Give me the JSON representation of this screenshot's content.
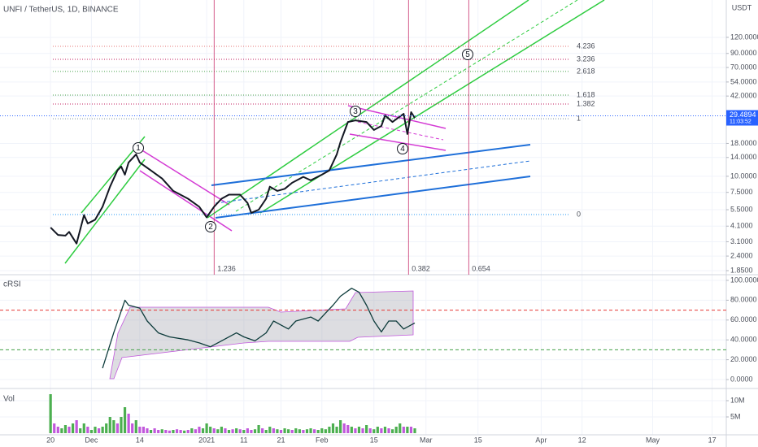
{
  "chart_data": [
    {
      "type": "line",
      "title": "UNFI / TetherUS, 1D, BINANCE",
      "currency": "USDT",
      "color": "#131722",
      "log": true,
      "grid": true,
      "xlim": [
        -13.6,
        181.8
      ],
      "xticks": [
        {
          "value": 0,
          "label": "20"
        },
        {
          "value": 11,
          "label": "Dec"
        },
        {
          "value": 24,
          "label": "14"
        },
        {
          "value": 42,
          "label": "2021"
        },
        {
          "value": 52,
          "label": "11"
        },
        {
          "value": 62,
          "label": "21"
        },
        {
          "value": 73,
          "label": "Feb"
        },
        {
          "value": 87,
          "label": "15"
        },
        {
          "value": 101,
          "label": "Mar"
        },
        {
          "value": 115,
          "label": "15"
        },
        {
          "value": 132,
          "label": "Apr"
        },
        {
          "value": 143,
          "label": "12"
        },
        {
          "value": 162,
          "label": "May"
        },
        {
          "value": 178,
          "label": "17"
        }
      ],
      "ylim": [
        1.72,
        234
      ],
      "yticks": [
        {
          "value": 120,
          "label": "120.0000"
        },
        {
          "value": 90,
          "label": "90.0000"
        },
        {
          "value": 70,
          "label": "70.0000"
        },
        {
          "value": 54,
          "label": "54.0000"
        },
        {
          "value": 42,
          "label": "42.0000"
        },
        {
          "value": 18,
          "label": "18.0000"
        },
        {
          "value": 14,
          "label": "14.0000"
        },
        {
          "value": 10,
          "label": "10.0000"
        },
        {
          "value": 7.5,
          "label": "7.5000"
        },
        {
          "value": 5.5,
          "label": "5.5000"
        },
        {
          "value": 4.1,
          "label": "4.1000"
        },
        {
          "value": 3.1,
          "label": "3.1000"
        },
        {
          "value": 2.4,
          "label": "2.4000"
        },
        {
          "value": 1.85,
          "label": "1.8500"
        }
      ],
      "x": [
        0,
        2,
        4,
        5,
        7,
        9,
        10,
        12,
        14,
        16,
        18,
        19,
        20,
        21,
        23,
        24,
        27,
        30,
        33,
        37,
        40,
        42,
        44,
        46,
        48,
        51,
        53,
        54,
        56,
        58,
        59,
        61,
        63,
        65,
        68,
        70,
        73,
        75,
        77,
        78,
        80,
        82,
        85,
        87,
        89,
        90,
        92,
        95,
        96,
        97,
        98
      ],
      "values": [
        4.0,
        3.5,
        3.46,
        3.7,
        3.0,
        5.0,
        4.3,
        4.6,
        5.8,
        8.3,
        11.1,
        11.9,
        10.3,
        12.8,
        14.8,
        12.8,
        11.1,
        9.6,
        7.7,
        6.7,
        5.8,
        4.8,
        5.8,
        6.7,
        7.2,
        7.2,
        6.2,
        5.2,
        5.5,
        6.7,
        8.3,
        7.7,
        8.0,
        8.9,
        9.9,
        9.3,
        10.3,
        11.1,
        14.8,
        18.4,
        26.4,
        27.2,
        26.4,
        22.9,
        24.6,
        29.7,
        26.4,
        30.6,
        21.3,
        31.5,
        28.4
      ],
      "last_price": 29.4894,
      "last_color": "#2962ff",
      "countdown": "11:03:52",
      "fib_levels": [
        {
          "value": 102.2,
          "label": "4.236",
          "color": "#e57373"
        },
        {
          "value": 81.0,
          "label": "3.236",
          "color": "#c2185b"
        },
        {
          "value": 65.2,
          "label": "2.618",
          "color": "#43a047"
        },
        {
          "value": 42.7,
          "label": "1.618",
          "color": "#43a047"
        },
        {
          "value": 36.4,
          "label": "1.382",
          "color": "#c2185b"
        },
        {
          "value": 28.0,
          "label": "1",
          "color": "#78909c"
        },
        {
          "value": 5.04,
          "label": "0",
          "color": "#2196f3"
        }
      ],
      "fib_time": [
        {
          "x": 44,
          "label": "1.236"
        },
        {
          "x": 96.3,
          "label": "0.382"
        },
        {
          "x": 112.5,
          "label": "0.654"
        }
      ],
      "waves": [
        "1",
        "2",
        "3",
        "4",
        "5"
      ]
    },
    {
      "type": "line",
      "title": "cRSI",
      "color": "#0d3b3b",
      "ylim": [
        -9,
        105.7
      ],
      "yticks": [
        {
          "value": 100,
          "label": "100.0000"
        },
        {
          "value": 80,
          "label": "80.0000"
        },
        {
          "value": 60,
          "label": "60.0000"
        },
        {
          "value": 40,
          "label": "40.0000"
        },
        {
          "value": 20,
          "label": "20.0000"
        },
        {
          "value": 0,
          "label": "0.0000"
        }
      ],
      "levels": [
        {
          "value": 70,
          "color": "#e53935"
        },
        {
          "value": 30,
          "color": "#43a047"
        }
      ],
      "x": [
        14,
        17,
        20,
        21,
        24,
        26,
        29,
        32,
        37,
        40,
        43,
        46,
        50,
        52,
        55,
        58,
        60,
        62,
        64,
        66,
        70,
        72,
        74,
        76,
        78,
        81,
        83,
        85,
        87,
        89,
        91,
        93,
        95,
        98
      ],
      "values": [
        11.5,
        47,
        80,
        75,
        72,
        59,
        47,
        43,
        40,
        37,
        33,
        39,
        47,
        43,
        39,
        47,
        59,
        55,
        51,
        59,
        63,
        59,
        67,
        75,
        84,
        92,
        88,
        75,
        59,
        48,
        59,
        59,
        51,
        57
      ]
    },
    {
      "type": "bar",
      "title": "Vol",
      "ylim": [
        -500000.0,
        13750000.0
      ],
      "yticks": [
        {
          "value": 10000000.0,
          "label": "10M"
        },
        {
          "value": 5000000.0,
          "label": "5M"
        }
      ],
      "x": [
        0,
        1,
        2,
        3,
        4,
        5,
        6,
        7,
        8,
        9,
        10,
        11,
        12,
        13,
        14,
        15,
        16,
        17,
        18,
        19,
        20,
        21,
        22,
        23,
        24,
        25,
        26,
        27,
        28,
        29,
        30,
        31,
        32,
        33,
        34,
        35,
        36,
        37,
        38,
        39,
        40,
        41,
        42,
        43,
        44,
        45,
        46,
        47,
        48,
        49,
        50,
        51,
        52,
        53,
        54,
        55,
        56,
        57,
        58,
        59,
        60,
        61,
        62,
        63,
        64,
        65,
        66,
        67,
        68,
        69,
        70,
        71,
        72,
        73,
        74,
        75,
        76,
        77,
        78,
        79,
        80,
        81,
        82,
        83,
        84,
        85,
        86,
        87,
        88,
        89,
        90,
        91,
        92,
        93,
        94,
        95,
        96,
        97,
        98
      ],
      "values": [
        12000000.0,
        3000000.0,
        2000000.0,
        1500000.0,
        2500000.0,
        2000000.0,
        3000000.0,
        4000000.0,
        1500000.0,
        3000000.0,
        2000000.0,
        1000000.0,
        2000000.0,
        1500000.0,
        2000000.0,
        3000000.0,
        5000000.0,
        4000000.0,
        3000000.0,
        5000000.0,
        8000000.0,
        6000000.0,
        3000000.0,
        4000000.0,
        2000000.0,
        2000000.0,
        1500000.0,
        1000000.0,
        1500000.0,
        1000000.0,
        1200000.0,
        1000000.0,
        800000.0,
        1000000.0,
        1200000.0,
        1000000.0,
        800000.0,
        1000000.0,
        1500000.0,
        1200000.0,
        2000000.0,
        1500000.0,
        3000000.0,
        2000000.0,
        1500000.0,
        1200000.0,
        2000000.0,
        1500000.0,
        1000000.0,
        1200000.0,
        1500000.0,
        1200000.0,
        1000000.0,
        1500000.0,
        1000000.0,
        1200000.0,
        2500000.0,
        1500000.0,
        1000000.0,
        2000000.0,
        1500000.0,
        1200000.0,
        1000000.0,
        1500000.0,
        1200000.0,
        1000000.0,
        1500000.0,
        1200000.0,
        1000000.0,
        1200000.0,
        1500000.0,
        1200000.0,
        1000000.0,
        1500000.0,
        1200000.0,
        2000000.0,
        3000000.0,
        2000000.0,
        4000000.0,
        3000000.0,
        2500000.0,
        2000000.0,
        1500000.0,
        2000000.0,
        1500000.0,
        2500000.0,
        1500000.0,
        1200000.0,
        2000000.0,
        1500000.0,
        2000000.0,
        1500000.0,
        1200000.0,
        2000000.0,
        3000000.0,
        2000000.0,
        2000000.0,
        2000000.0,
        1500000.0
      ],
      "colors": [
        "#4caf50",
        "#c158dc",
        "#c158dc",
        "#4caf50",
        "#4caf50",
        "#c158dc",
        "#4caf50",
        "#c158dc",
        "#4caf50",
        "#4caf50",
        "#c158dc",
        "#4caf50",
        "#4caf50",
        "#c158dc",
        "#4caf50",
        "#4caf50",
        "#4caf50",
        "#4caf50",
        "#c158dc",
        "#4caf50",
        "#4caf50",
        "#c158dc",
        "#c158dc",
        "#4caf50",
        "#c158dc",
        "#c158dc",
        "#c158dc",
        "#4caf50",
        "#c158dc",
        "#c158dc",
        "#4caf50",
        "#c158dc",
        "#c158dc",
        "#4caf50",
        "#c158dc",
        "#c158dc",
        "#4caf50",
        "#c158dc",
        "#4caf50",
        "#c158dc",
        "#c158dc",
        "#4caf50",
        "#4caf50",
        "#4caf50",
        "#c158dc",
        "#4caf50",
        "#4caf50",
        "#c158dc",
        "#4caf50",
        "#c158dc",
        "#4caf50",
        "#c158dc",
        "#4caf50",
        "#c158dc",
        "#c158dc",
        "#4caf50",
        "#4caf50",
        "#c158dc",
        "#4caf50",
        "#4caf50",
        "#c158dc",
        "#4caf50",
        "#c158dc",
        "#4caf50",
        "#4caf50",
        "#c158dc",
        "#4caf50",
        "#4caf50",
        "#c158dc",
        "#4caf50",
        "#4caf50",
        "#c158dc",
        "#4caf50",
        "#4caf50",
        "#4caf50",
        "#4caf50",
        "#4caf50",
        "#4caf50",
        "#4caf50",
        "#c158dc",
        "#c158dc",
        "#4caf50",
        "#c158dc",
        "#4caf50",
        "#c158dc",
        "#4caf50",
        "#c158dc",
        "#4caf50",
        "#4caf50",
        "#c158dc",
        "#4caf50",
        "#c158dc",
        "#4caf50",
        "#4caf50",
        "#4caf50",
        "#c158dc",
        "#4caf50",
        "#c158dc",
        "#4caf50"
      ]
    }
  ]
}
